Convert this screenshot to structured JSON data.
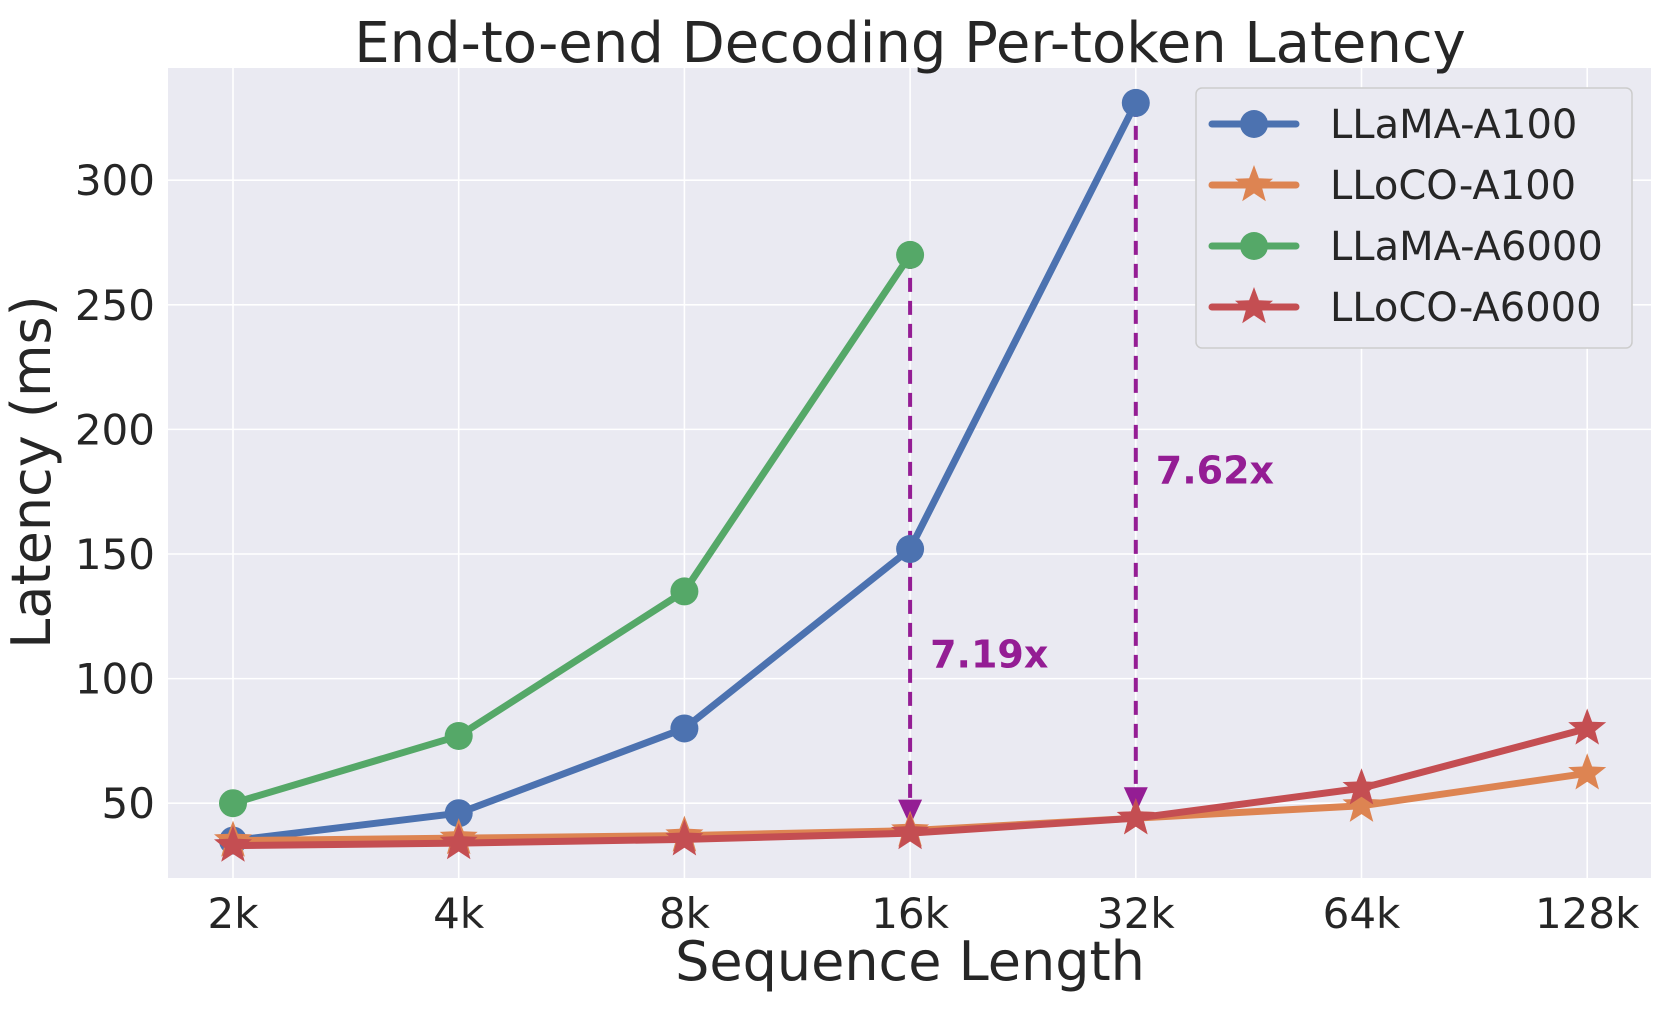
{
  "chart_data": {
    "type": "line",
    "title": "End-to-end Decoding Per-token Latency",
    "xlabel": "Sequence Length",
    "ylabel": "Latency (ms)",
    "categories": [
      "2k",
      "4k",
      "8k",
      "16k",
      "32k",
      "64k",
      "128k"
    ],
    "ylim": [
      20,
      345
    ],
    "yticks": [
      50,
      100,
      150,
      200,
      250,
      300
    ],
    "grid": true,
    "legend_position": "top-right",
    "series": [
      {
        "name": "LLaMA-A100",
        "color": "#4c72b0",
        "marker": "circle",
        "values": [
          35,
          46,
          80,
          152,
          331,
          null,
          null
        ]
      },
      {
        "name": "LLoCO-A100",
        "color": "#dd8452",
        "marker": "star",
        "values": [
          35,
          36,
          37,
          39,
          44,
          49,
          62
        ]
      },
      {
        "name": "LLaMA-A6000",
        "color": "#55a868",
        "marker": "circle",
        "values": [
          50,
          77,
          135,
          270,
          null,
          null,
          null
        ]
      },
      {
        "name": "LLoCO-A6000",
        "color": "#c44e52",
        "marker": "star",
        "values": [
          33,
          34,
          35.5,
          38,
          44,
          56,
          80
        ]
      }
    ],
    "annotations": [
      {
        "text": "7.19x",
        "category": "16k",
        "from": 270,
        "to": 41,
        "label_y": 110,
        "color": "#941d94"
      },
      {
        "text": "7.62x",
        "category": "32k",
        "from": 331,
        "to": 46,
        "label_y": 184,
        "color": "#941d94"
      }
    ]
  }
}
